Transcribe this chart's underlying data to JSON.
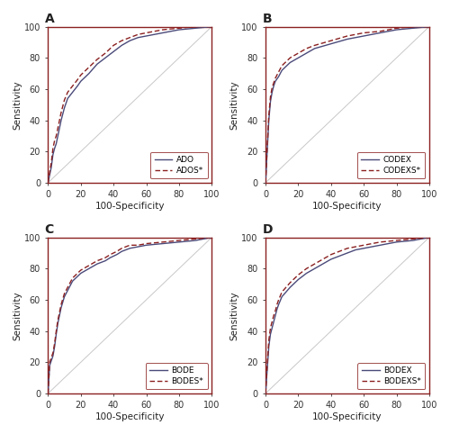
{
  "panels": [
    "A",
    "B",
    "C",
    "D"
  ],
  "xlabel": "100-Specificity",
  "ylabel": "Sensitivity",
  "xlim": [
    0,
    100
  ],
  "ylim": [
    0,
    100
  ],
  "xticks": [
    0,
    20,
    40,
    60,
    80,
    100
  ],
  "yticks": [
    0,
    20,
    40,
    60,
    80,
    100
  ],
  "border_color": "#8B2020",
  "diagonal_color": "#C8C8C8",
  "line1_color": "#4A4A7A",
  "line2_color": "#8B2020",
  "line1_style": "solid",
  "line2_style": "dashed",
  "legends": [
    [
      "ADO",
      "ADOS*"
    ],
    [
      "CODEX",
      "CODEXS*"
    ],
    [
      "BODE",
      "BODES*"
    ],
    [
      "BODEX",
      "BODEXS*"
    ]
  ],
  "panel_A_line1": [
    [
      0,
      0
    ],
    [
      1,
      5
    ],
    [
      2,
      10
    ],
    [
      3,
      18
    ],
    [
      4,
      22
    ],
    [
      5,
      25
    ],
    [
      6,
      30
    ],
    [
      7,
      35
    ],
    [
      8,
      40
    ],
    [
      9,
      44
    ],
    [
      10,
      48
    ],
    [
      12,
      54
    ],
    [
      15,
      58
    ],
    [
      18,
      62
    ],
    [
      20,
      65
    ],
    [
      25,
      70
    ],
    [
      30,
      76
    ],
    [
      35,
      80
    ],
    [
      40,
      84
    ],
    [
      45,
      88
    ],
    [
      50,
      91
    ],
    [
      55,
      93
    ],
    [
      60,
      94
    ],
    [
      65,
      95
    ],
    [
      70,
      96
    ],
    [
      80,
      98
    ],
    [
      90,
      99
    ],
    [
      100,
      100
    ]
  ],
  "panel_A_line2": [
    [
      0,
      0
    ],
    [
      1,
      7
    ],
    [
      2,
      13
    ],
    [
      3,
      22
    ],
    [
      4,
      27
    ],
    [
      5,
      30
    ],
    [
      6,
      35
    ],
    [
      7,
      40
    ],
    [
      8,
      45
    ],
    [
      9,
      49
    ],
    [
      10,
      53
    ],
    [
      12,
      58
    ],
    [
      15,
      62
    ],
    [
      18,
      66
    ],
    [
      20,
      69
    ],
    [
      25,
      74
    ],
    [
      30,
      79
    ],
    [
      35,
      83
    ],
    [
      40,
      88
    ],
    [
      45,
      91
    ],
    [
      50,
      93
    ],
    [
      55,
      95
    ],
    [
      60,
      96
    ],
    [
      65,
      97
    ],
    [
      70,
      98
    ],
    [
      80,
      99
    ],
    [
      90,
      100
    ],
    [
      100,
      100
    ]
  ],
  "panel_B_line1": [
    [
      0,
      0
    ],
    [
      1,
      20
    ],
    [
      2,
      40
    ],
    [
      3,
      52
    ],
    [
      4,
      58
    ],
    [
      5,
      62
    ],
    [
      6,
      65
    ],
    [
      8,
      68
    ],
    [
      10,
      72
    ],
    [
      15,
      77
    ],
    [
      20,
      80
    ],
    [
      25,
      83
    ],
    [
      30,
      86
    ],
    [
      40,
      89
    ],
    [
      50,
      92
    ],
    [
      60,
      94
    ],
    [
      70,
      96
    ],
    [
      80,
      98
    ],
    [
      90,
      99
    ],
    [
      100,
      100
    ]
  ],
  "panel_B_line2": [
    [
      0,
      0
    ],
    [
      1,
      22
    ],
    [
      2,
      43
    ],
    [
      3,
      55
    ],
    [
      4,
      61
    ],
    [
      5,
      64
    ],
    [
      6,
      67
    ],
    [
      8,
      71
    ],
    [
      10,
      75
    ],
    [
      15,
      80
    ],
    [
      20,
      83
    ],
    [
      25,
      86
    ],
    [
      30,
      88
    ],
    [
      40,
      91
    ],
    [
      50,
      94
    ],
    [
      60,
      96
    ],
    [
      70,
      97
    ],
    [
      80,
      99
    ],
    [
      90,
      100
    ],
    [
      100,
      100
    ]
  ],
  "panel_C_line1": [
    [
      0,
      0
    ],
    [
      1,
      18
    ],
    [
      2,
      21
    ],
    [
      3,
      24
    ],
    [
      4,
      30
    ],
    [
      5,
      38
    ],
    [
      6,
      45
    ],
    [
      7,
      50
    ],
    [
      8,
      55
    ],
    [
      10,
      62
    ],
    [
      15,
      72
    ],
    [
      20,
      77
    ],
    [
      25,
      80
    ],
    [
      30,
      83
    ],
    [
      35,
      85
    ],
    [
      38,
      87
    ],
    [
      40,
      88
    ],
    [
      42,
      89
    ],
    [
      45,
      91
    ],
    [
      50,
      93
    ],
    [
      55,
      94
    ],
    [
      60,
      95
    ],
    [
      70,
      96
    ],
    [
      80,
      97
    ],
    [
      90,
      98
    ],
    [
      100,
      100
    ]
  ],
  "panel_C_line2": [
    [
      0,
      0
    ],
    [
      1,
      20
    ],
    [
      2,
      23
    ],
    [
      3,
      26
    ],
    [
      4,
      32
    ],
    [
      5,
      40
    ],
    [
      6,
      47
    ],
    [
      7,
      52
    ],
    [
      8,
      57
    ],
    [
      10,
      64
    ],
    [
      15,
      74
    ],
    [
      20,
      79
    ],
    [
      25,
      82
    ],
    [
      30,
      85
    ],
    [
      35,
      87
    ],
    [
      38,
      89
    ],
    [
      40,
      90
    ],
    [
      42,
      91
    ],
    [
      45,
      93
    ],
    [
      50,
      95
    ],
    [
      55,
      95
    ],
    [
      60,
      96
    ],
    [
      70,
      97
    ],
    [
      80,
      98
    ],
    [
      90,
      99
    ],
    [
      100,
      100
    ]
  ],
  "panel_D_line1": [
    [
      0,
      0
    ],
    [
      1,
      15
    ],
    [
      2,
      30
    ],
    [
      3,
      38
    ],
    [
      4,
      42
    ],
    [
      5,
      46
    ],
    [
      6,
      50
    ],
    [
      7,
      54
    ],
    [
      8,
      57
    ],
    [
      10,
      62
    ],
    [
      15,
      68
    ],
    [
      20,
      73
    ],
    [
      25,
      77
    ],
    [
      30,
      80
    ],
    [
      35,
      83
    ],
    [
      40,
      86
    ],
    [
      45,
      88
    ],
    [
      50,
      90
    ],
    [
      55,
      92
    ],
    [
      60,
      93
    ],
    [
      65,
      94
    ],
    [
      70,
      95
    ],
    [
      80,
      97
    ],
    [
      90,
      98
    ],
    [
      100,
      100
    ]
  ],
  "panel_D_line2": [
    [
      0,
      0
    ],
    [
      1,
      18
    ],
    [
      2,
      34
    ],
    [
      3,
      42
    ],
    [
      4,
      46
    ],
    [
      5,
      50
    ],
    [
      6,
      53
    ],
    [
      7,
      57
    ],
    [
      8,
      60
    ],
    [
      10,
      65
    ],
    [
      15,
      71
    ],
    [
      20,
      76
    ],
    [
      25,
      80
    ],
    [
      30,
      83
    ],
    [
      35,
      86
    ],
    [
      40,
      89
    ],
    [
      45,
      91
    ],
    [
      50,
      93
    ],
    [
      55,
      94
    ],
    [
      60,
      95
    ],
    [
      65,
      96
    ],
    [
      70,
      97
    ],
    [
      80,
      98
    ],
    [
      90,
      99
    ],
    [
      100,
      100
    ]
  ],
  "tick_fontsize": 7,
  "label_fontsize": 7.5,
  "panel_label_fontsize": 10,
  "legend_fontsize": 6.5,
  "linewidth": 1.0,
  "diag_linewidth": 0.7,
  "background": "#FFFFFF",
  "fig_background": "#FFFFFF"
}
